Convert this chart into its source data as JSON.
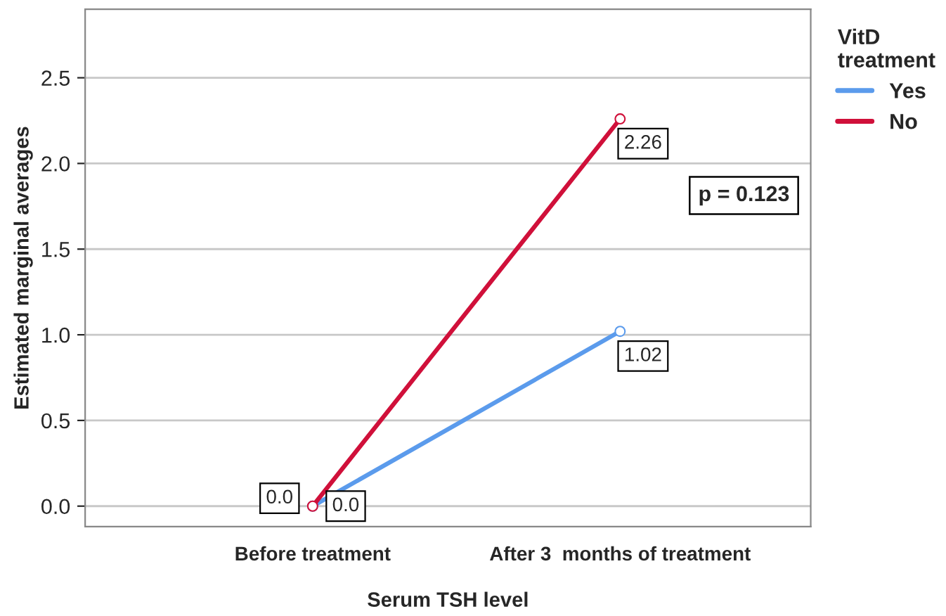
{
  "chart_data": {
    "type": "line",
    "xlabel": "Serum TSH level",
    "ylabel": "Estimated marginal averages",
    "categories": [
      "Before treatment",
      "After 3  months of treatment"
    ],
    "legend_title": "VitD treatment",
    "series": [
      {
        "name": "Yes",
        "color": "#5b9bec",
        "values": [
          0.0,
          1.02
        ],
        "value_labels": [
          "0.0",
          "1.02"
        ]
      },
      {
        "name": "No",
        "color": "#d0103a",
        "values": [
          0.0,
          2.26
        ],
        "value_labels": [
          "0.0",
          "2.26"
        ]
      }
    ],
    "ylim": [
      -0.12,
      2.9
    ],
    "yticks": [
      {
        "value": 0,
        "label": "0.0"
      },
      {
        "value": 0.5,
        "label": "0.5"
      },
      {
        "value": 1,
        "label": "1.0"
      },
      {
        "value": 1.5,
        "label": "1.5"
      },
      {
        "value": 2,
        "label": "2.0"
      },
      {
        "value": 2.5,
        "label": "2.5"
      }
    ],
    "grid": "y",
    "legend": "top right",
    "marker": "circle",
    "line_style": "solid",
    "annotations": [
      "p = 0.123"
    ]
  }
}
